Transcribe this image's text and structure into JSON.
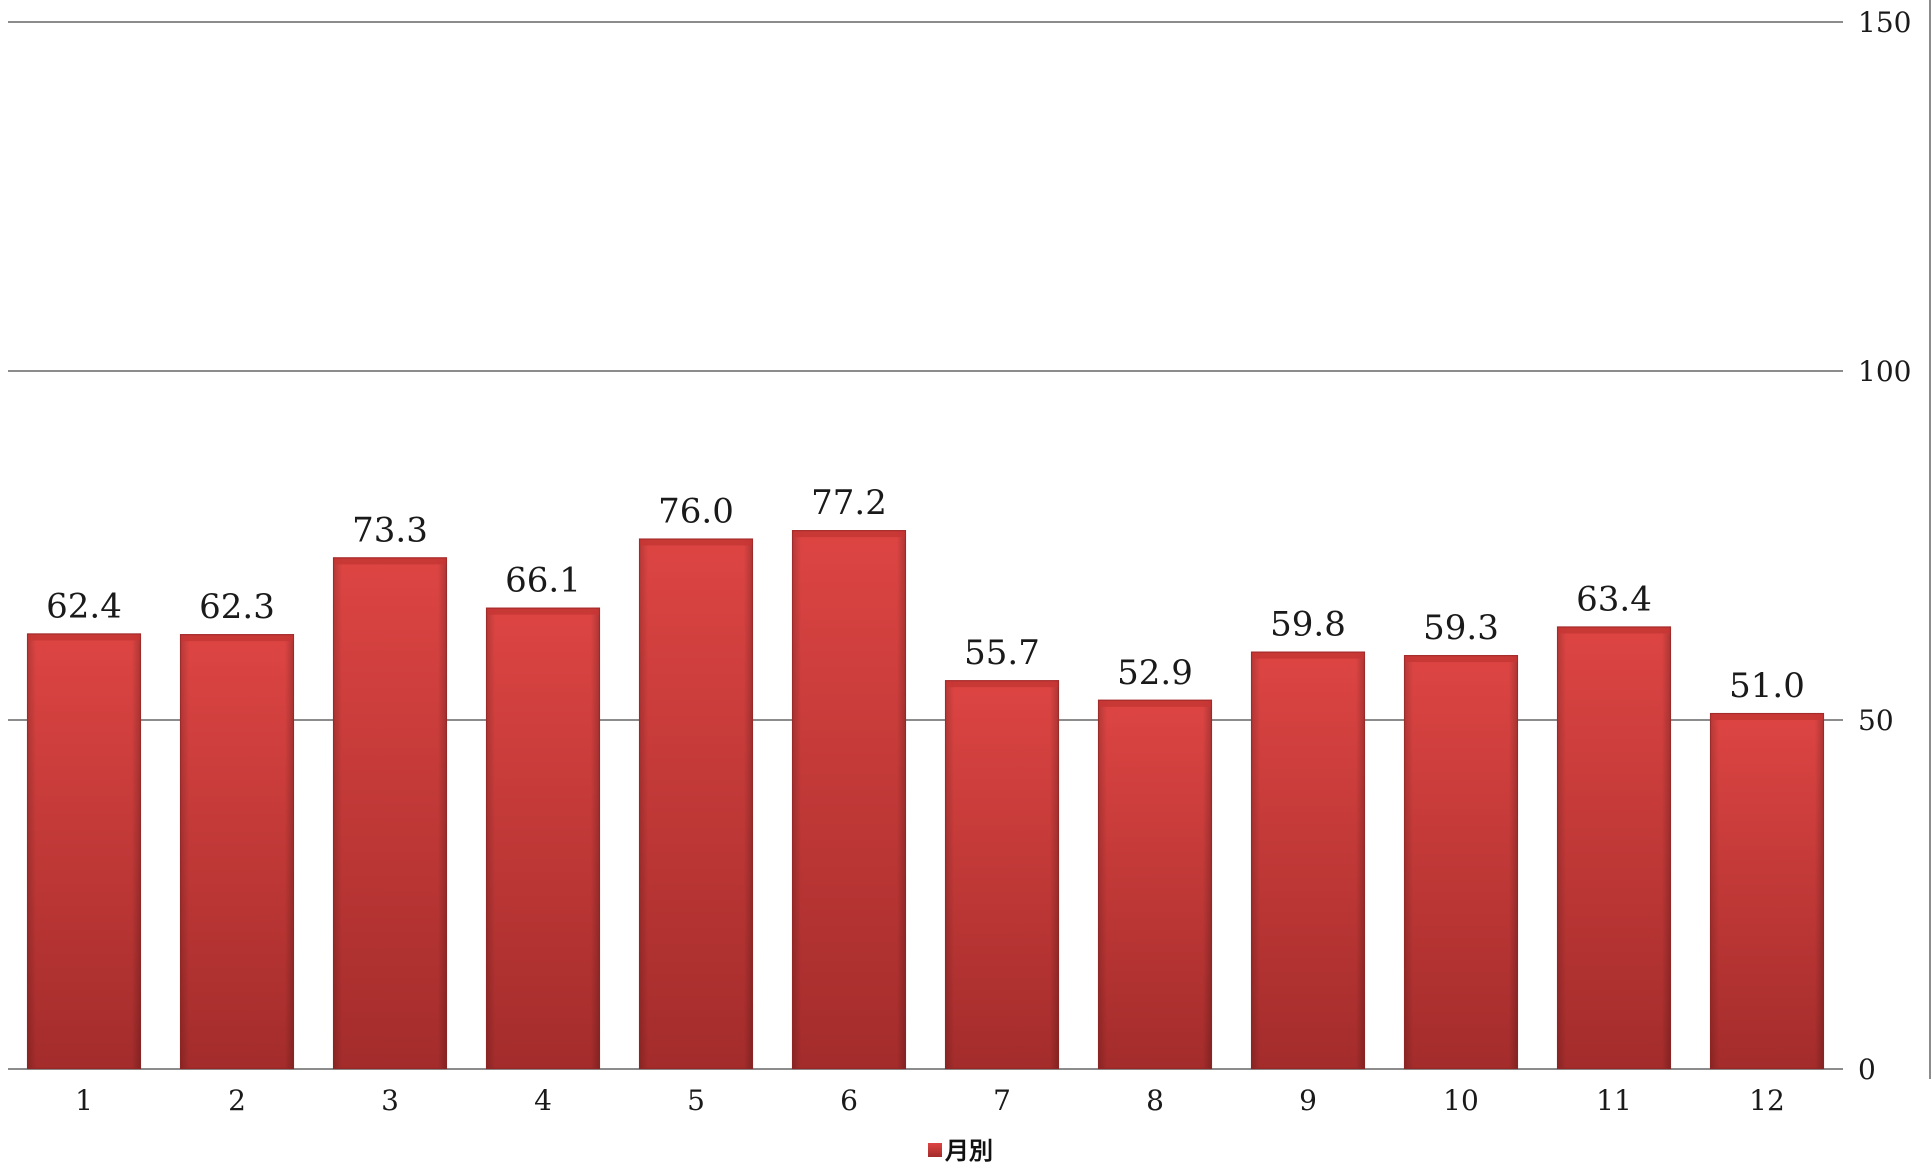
{
  "chart_data": {
    "type": "bar",
    "title": "",
    "xlabel": "",
    "ylabel": "",
    "categories": [
      "1",
      "2",
      "3",
      "4",
      "5",
      "6",
      "7",
      "8",
      "9",
      "10",
      "11",
      "12"
    ],
    "series": [
      {
        "name": "月別",
        "values": [
          62.4,
          62.3,
          73.3,
          66.1,
          76.0,
          77.2,
          55.7,
          52.9,
          59.8,
          59.3,
          63.4,
          51.0
        ],
        "data_labels": [
          "62.4",
          "62.3",
          "73.3",
          "66.1",
          "76.0",
          "77.2",
          "55.7",
          "52.9",
          "59.8",
          "59.3",
          "63.4",
          "51.0"
        ]
      }
    ],
    "ylim": [
      0,
      150
    ],
    "yticks": [
      "0",
      "50",
      "100",
      "150"
    ],
    "y_axis_position": "right",
    "grid": true,
    "legend_position": "bottom",
    "colors": {
      "bar_light": "#dd4543",
      "bar_dark": "#a32c2b",
      "bar_top": "#c53634",
      "grid": "#8c8c8c"
    }
  }
}
